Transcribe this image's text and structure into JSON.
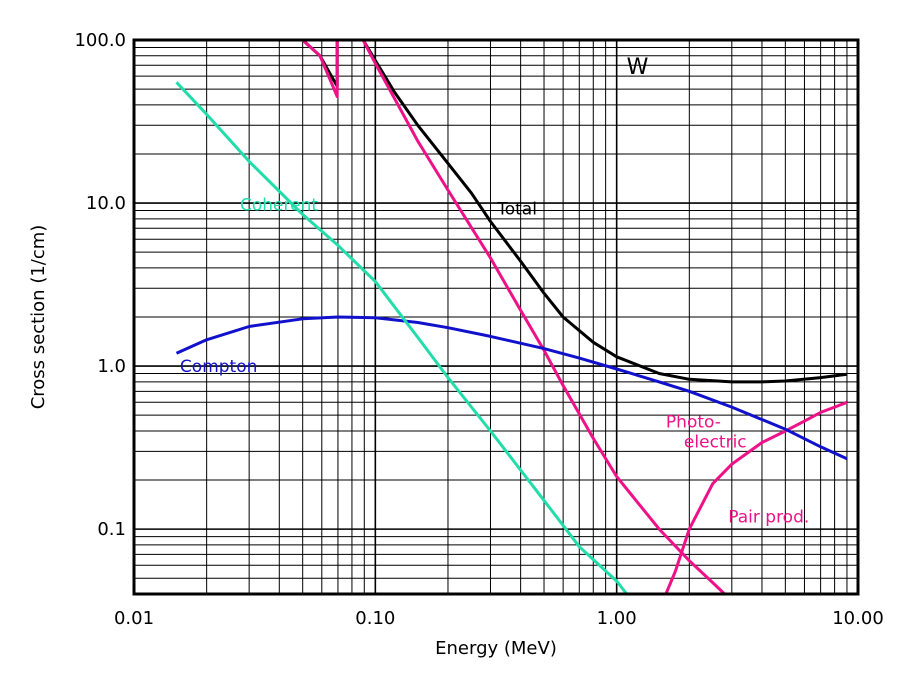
{
  "chart_data": {
    "type": "line",
    "title": "",
    "element_label": "W",
    "xlabel": "Energy (MeV)",
    "ylabel": "Cross section (1/cm)",
    "xscale": "log",
    "yscale": "log",
    "xlim": [
      0.01,
      10.0
    ],
    "ylim": [
      0.04,
      100.0
    ],
    "grid": true,
    "x_tick_labels": [
      {
        "value": 0.01,
        "label": "0.01"
      },
      {
        "value": 0.1,
        "label": "0.10"
      },
      {
        "value": 1.0,
        "label": "1.00"
      },
      {
        "value": 10.0,
        "label": "10.00"
      }
    ],
    "y_tick_labels": [
      {
        "value": 0.1,
        "label": "0.1"
      },
      {
        "value": 1.0,
        "label": "1.0"
      },
      {
        "value": 10.0,
        "label": "10.0"
      },
      {
        "value": 100.0,
        "label": "100.0"
      }
    ],
    "series": [
      {
        "name": "Total",
        "color": "#000000",
        "label_text": "Total",
        "label_at": [
          0.32,
          8.5
        ],
        "points": [
          [
            0.05,
            100
          ],
          [
            0.059,
            80
          ],
          [
            0.0695,
            52
          ],
          [
            0.0695,
            100
          ],
          [
            0.089,
            100
          ],
          [
            0.1,
            75
          ],
          [
            0.12,
            48
          ],
          [
            0.15,
            30
          ],
          [
            0.2,
            17.5
          ],
          [
            0.25,
            11.5
          ],
          [
            0.3,
            7.7
          ],
          [
            0.4,
            4.4
          ],
          [
            0.5,
            2.8
          ],
          [
            0.6,
            2.0
          ],
          [
            0.8,
            1.4
          ],
          [
            1.0,
            1.14
          ],
          [
            1.5,
            0.9
          ],
          [
            2.0,
            0.83
          ],
          [
            3.0,
            0.8
          ],
          [
            4.0,
            0.8
          ],
          [
            5.0,
            0.81
          ],
          [
            7.0,
            0.85
          ],
          [
            9.0,
            0.89
          ]
        ]
      },
      {
        "name": "Photo-electric",
        "color": "#ee1188",
        "label_text": [
          "Photo-",
          "electric"
        ],
        "label_at": [
          1.6,
          0.42
        ],
        "points": [
          [
            0.05,
            100
          ],
          [
            0.059,
            80
          ],
          [
            0.0695,
            45
          ],
          [
            0.0695,
            100
          ],
          [
            0.089,
            100
          ],
          [
            0.1,
            72
          ],
          [
            0.15,
            24
          ],
          [
            0.2,
            12
          ],
          [
            0.3,
            4.6
          ],
          [
            0.4,
            2.2
          ],
          [
            0.5,
            1.25
          ],
          [
            0.6,
            0.76
          ],
          [
            0.8,
            0.36
          ],
          [
            1.0,
            0.21
          ],
          [
            1.5,
            0.1
          ],
          [
            2.0,
            0.064
          ],
          [
            2.5,
            0.047
          ],
          [
            2.8,
            0.04
          ]
        ]
      },
      {
        "name": "Pair prod.",
        "color": "#ee1188",
        "label_text": "Pair prod.",
        "label_at": [
          2.9,
          0.11
        ],
        "points": [
          [
            1.6,
            0.04
          ],
          [
            1.75,
            0.055
          ],
          [
            2.0,
            0.1
          ],
          [
            2.5,
            0.19
          ],
          [
            3.0,
            0.25
          ],
          [
            4.0,
            0.34
          ],
          [
            5.0,
            0.4
          ],
          [
            6.0,
            0.46
          ],
          [
            7.0,
            0.52
          ],
          [
            8.0,
            0.56
          ],
          [
            9.0,
            0.6
          ]
        ]
      },
      {
        "name": "Compton",
        "color": "#1111cc",
        "label_text": "Compton",
        "label_at": [
          0.0155,
          0.92
        ],
        "points": [
          [
            0.015,
            1.2
          ],
          [
            0.02,
            1.45
          ],
          [
            0.03,
            1.75
          ],
          [
            0.05,
            1.95
          ],
          [
            0.07,
            2.0
          ],
          [
            0.1,
            1.98
          ],
          [
            0.15,
            1.85
          ],
          [
            0.2,
            1.72
          ],
          [
            0.3,
            1.52
          ],
          [
            0.5,
            1.28
          ],
          [
            0.7,
            1.12
          ],
          [
            1.0,
            0.96
          ],
          [
            1.5,
            0.8
          ],
          [
            2.0,
            0.7
          ],
          [
            3.0,
            0.56
          ],
          [
            5.0,
            0.41
          ],
          [
            7.0,
            0.32
          ],
          [
            9.0,
            0.27
          ]
        ]
      },
      {
        "name": "Coherent",
        "color": "#22ddaa",
        "label_text": "Coherent",
        "label_at": [
          0.0275,
          9.0
        ],
        "points": [
          [
            0.015,
            55
          ],
          [
            0.02,
            35
          ],
          [
            0.03,
            18
          ],
          [
            0.05,
            8.5
          ],
          [
            0.07,
            5.5
          ],
          [
            0.1,
            3.3
          ],
          [
            0.15,
            1.5
          ],
          [
            0.2,
            0.85
          ],
          [
            0.3,
            0.4
          ],
          [
            0.5,
            0.15
          ],
          [
            0.7,
            0.078
          ],
          [
            1.0,
            0.048
          ],
          [
            1.1,
            0.04
          ]
        ]
      }
    ]
  }
}
